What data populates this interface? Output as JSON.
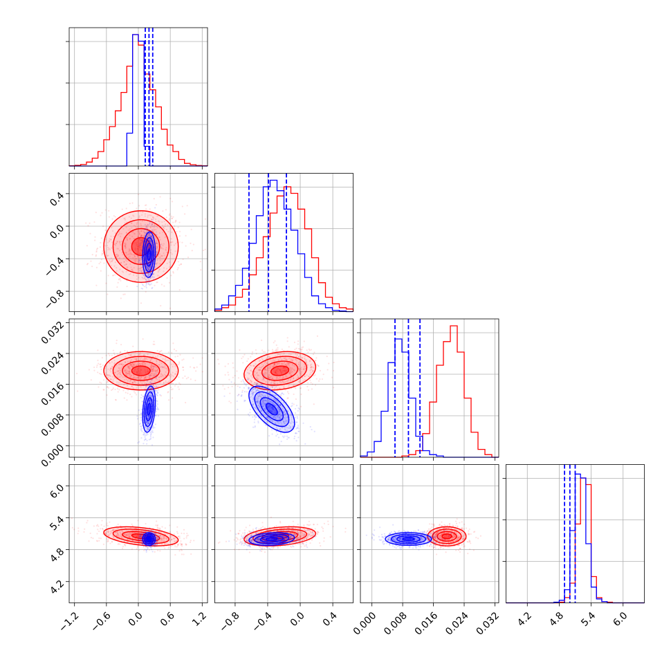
{
  "chart_data": {
    "type": "corner",
    "title": "",
    "parameters": [
      {
        "ticks": [
          "−1.2",
          "−0.6",
          "0.0",
          "0.6",
          "1.2"
        ],
        "tick_values": [
          -1.2,
          -0.6,
          0.0,
          0.6,
          1.2
        ],
        "range": [
          -1.3,
          1.3
        ]
      },
      {
        "ticks": [
          "−0.8",
          "−0.4",
          "0.0",
          "0.4"
        ],
        "tick_values": [
          -0.8,
          -0.4,
          0.0,
          0.4
        ],
        "range": [
          -1.05,
          0.65
        ]
      },
      {
        "ticks": [
          "0.000",
          "0.008",
          "0.016",
          "0.024",
          "0.032"
        ],
        "tick_values": [
          0.0,
          0.008,
          0.016,
          0.024,
          0.032
        ],
        "range": [
          -0.003,
          0.033
        ]
      },
      {
        "ticks": [
          "4.2",
          "4.8",
          "5.4",
          "6.0"
        ],
        "tick_values": [
          4.2,
          4.8,
          5.4,
          6.0
        ],
        "range": [
          3.8,
          6.4
        ]
      }
    ],
    "series": [
      {
        "name": "",
        "color": "#ff0000",
        "mean": [
          0.05,
          -0.25,
          0.0195,
          5.05
        ],
        "std": [
          0.35,
          0.22,
          0.0025,
          0.09
        ],
        "quantiles": null,
        "hist": [
          [
            0.002,
            0.005,
            0.012,
            0.03,
            0.06,
            0.11,
            0.2,
            0.3,
            0.42,
            0.56,
            0.76,
            1.0,
            0.92,
            0.7,
            0.58,
            0.45,
            0.28,
            0.16,
            0.11,
            0.05,
            0.02,
            0.01,
            0.004,
            0.002
          ],
          [
            0.01,
            0.03,
            0.05,
            0.11,
            0.17,
            0.28,
            0.41,
            0.57,
            0.75,
            0.88,
            0.95,
            0.9,
            0.78,
            0.63,
            0.41,
            0.22,
            0.11,
            0.06,
            0.03,
            0.02
          ],
          [
            0.0,
            0.0,
            0.0,
            0.0,
            0.0,
            0.0,
            0.01,
            0.02,
            0.05,
            0.18,
            0.42,
            0.7,
            0.88,
            1.0,
            0.8,
            0.45,
            0.19,
            0.06,
            0.02,
            0.0
          ],
          [
            0.0,
            0.0,
            0.0,
            0.0,
            0.0,
            0.0,
            0.0,
            0.0,
            0.0,
            0.0,
            0.005,
            0.04,
            0.15,
            0.6,
            0.95,
            0.9,
            0.2,
            0.04,
            0.01,
            0.005,
            0.0,
            0.0,
            0.0,
            0.0,
            0.0,
            0.0
          ]
        ]
      },
      {
        "name": "",
        "color": "#0000ff",
        "mean": [
          0.2,
          -0.35,
          0.0095,
          5.0
        ],
        "std": [
          0.06,
          0.14,
          0.003,
          0.06
        ],
        "quantiles": [
          [
            0.13,
            0.2,
            0.27
          ],
          [
            -0.63,
            -0.39,
            -0.17
          ],
          [
            0.006,
            0.0095,
            0.0125
          ],
          [
            4.9,
            5.0,
            5.1
          ]
        ],
        "hist": [
          [
            0.0,
            0.0,
            0.0,
            0.0,
            0.0,
            0.0,
            0.0,
            0.0,
            0.0,
            0.0,
            0.25,
            1.0,
            0.95,
            0.15,
            0.0,
            0.0,
            0.0,
            0.0,
            0.0,
            0.0,
            0.0,
            0.0,
            0.0,
            0.0
          ],
          [
            0.02,
            0.05,
            0.12,
            0.2,
            0.33,
            0.52,
            0.73,
            0.95,
            1.0,
            0.92,
            0.78,
            0.62,
            0.44,
            0.26,
            0.12,
            0.06,
            0.03,
            0.01,
            0.005,
            0.0
          ],
          [
            0.01,
            0.04,
            0.12,
            0.35,
            0.72,
            0.9,
            0.8,
            0.45,
            0.16,
            0.05,
            0.02,
            0.01,
            0.0,
            0.0,
            0.0,
            0.0,
            0.0,
            0.0,
            0.0,
            0.0
          ],
          [
            0.0,
            0.0,
            0.0,
            0.0,
            0.0,
            0.0,
            0.0,
            0.0,
            0.0,
            0.005,
            0.02,
            0.1,
            0.55,
            0.98,
            0.95,
            0.45,
            0.12,
            0.03,
            0.01,
            0.0,
            0.0,
            0.0,
            0.0,
            0.0,
            0.0,
            0.0
          ]
        ]
      }
    ],
    "correlations": {
      "1-0": {
        "#ff0000": 0.0,
        "#0000ff": 0.1
      },
      "2-0": {
        "#ff0000": 0.0,
        "#0000ff": 0.3
      },
      "2-1": {
        "#ff0000": 0.2,
        "#0000ff": -0.6
      },
      "3-0": {
        "#ff0000": -0.4,
        "#0000ff": 0.0
      },
      "3-1": {
        "#ff0000": 0.3,
        "#0000ff": 0.2
      },
      "3-2": {
        "#ff0000": 0.0,
        "#0000ff": 0.0
      }
    },
    "contour_levels": "1, 1.5, 2 sigma",
    "grid": true,
    "legend": "none"
  }
}
